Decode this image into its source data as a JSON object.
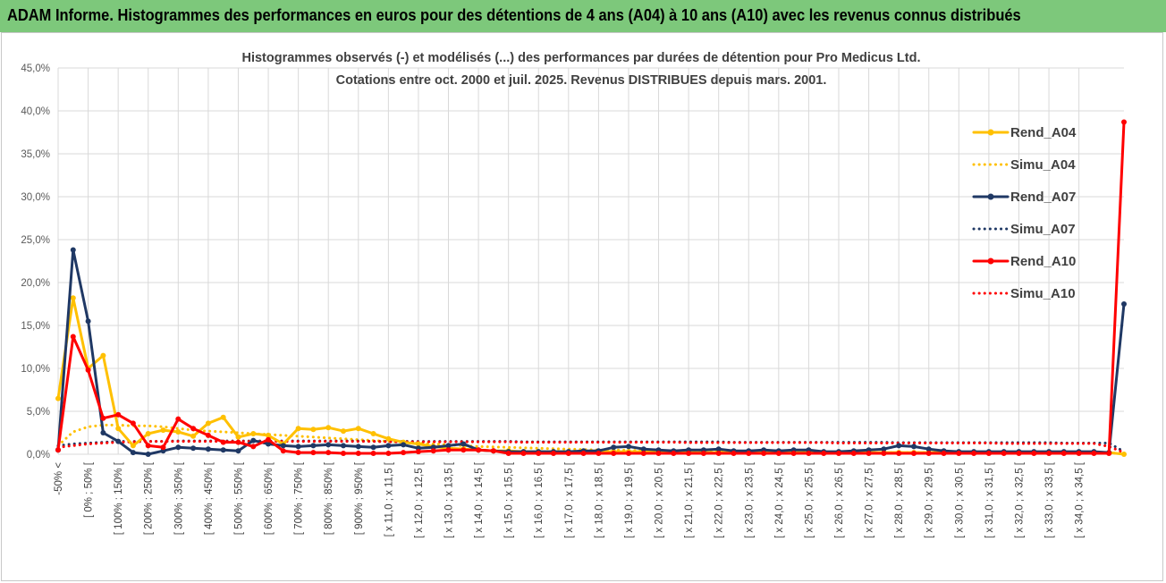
{
  "banner": {
    "title": "ADAM Informe. Histogrammes des performances en euros pour des détentions de 4 ans (A04) à 10 ans (A10) avec les revenus connus distribués"
  },
  "colors": {
    "banner": "#7dc87b",
    "A04": "#ffc000",
    "A07": "#1f3864",
    "A10": "#ff0000",
    "grid": "#d9d9d9"
  },
  "chart_data": {
    "type": "line",
    "title": "Histogrammes observés (-) et modélisés (...) des performances par durées de détention pour Pro Medicus Ltd.",
    "subtitle": "Cotations entre oct. 2000 et juil. 2025. Revenus DISTRIBUES depuis mars. 2001.",
    "ylim": [
      0,
      45
    ],
    "ytick_labels": [
      "0,0%",
      "5,0%",
      "10,0%",
      "15,0%",
      "20,0%",
      "25,0%",
      "30,0%",
      "35,0%",
      "40,0%",
      "45,0%"
    ],
    "grid": true,
    "legend_position": "right",
    "category_count": 72,
    "xtick_labels": [
      {
        "i": 0,
        "label": "-50% <"
      },
      {
        "i": 2,
        "label": "[ 0% ; 50% ["
      },
      {
        "i": 4,
        "label": "[ 100% ; 150% ["
      },
      {
        "i": 6,
        "label": "[ 200% ; 250% ["
      },
      {
        "i": 8,
        "label": "[ 300% ; 350% ["
      },
      {
        "i": 10,
        "label": "[ 400% ; 450% ["
      },
      {
        "i": 12,
        "label": "[ 500% ; 550% ["
      },
      {
        "i": 14,
        "label": "[ 600% ; 650% ["
      },
      {
        "i": 16,
        "label": "[ 700% ; 750% ["
      },
      {
        "i": 18,
        "label": "[ 800% ; 850% ["
      },
      {
        "i": 20,
        "label": "[ 900% ; 950% ["
      },
      {
        "i": 22,
        "label": "[ x 11,0 ; x 11,5 ["
      },
      {
        "i": 24,
        "label": "[ x 12,0 ; x 12,5 ["
      },
      {
        "i": 26,
        "label": "[ x 13,0 ; x 13,5 ["
      },
      {
        "i": 28,
        "label": "[ x 14,0 ; x 14,5 ["
      },
      {
        "i": 30,
        "label": "[ x 15,0 ; x 15,5 ["
      },
      {
        "i": 32,
        "label": "[ x 16,0 ; x 16,5 ["
      },
      {
        "i": 34,
        "label": "[ x 17,0 ; x 17,5 ["
      },
      {
        "i": 36,
        "label": "[ x 18,0 ; x 18,5 ["
      },
      {
        "i": 38,
        "label": "[ x 19,0 ; x 19,5 ["
      },
      {
        "i": 40,
        "label": "[ x 20,0 ; x 20,5 ["
      },
      {
        "i": 42,
        "label": "[ x 21,0 ; x 21,5 ["
      },
      {
        "i": 44,
        "label": "[ x 22,0 ; x 22,5 ["
      },
      {
        "i": 46,
        "label": "[ x 23,0 ; x 23,5 ["
      },
      {
        "i": 48,
        "label": "[ x 24,0 ; x 24,5 ["
      },
      {
        "i": 50,
        "label": "[ x 25,0 ; x 25,5 ["
      },
      {
        "i": 52,
        "label": "[ x 26,0 ; x 26,5 ["
      },
      {
        "i": 54,
        "label": "[ x 27,0 ; x 27,5 ["
      },
      {
        "i": 56,
        "label": "[ x 28,0 ; x 28,5 ["
      },
      {
        "i": 58,
        "label": "[ x 29,0 ; x 29,5 ["
      },
      {
        "i": 60,
        "label": "[ x 30,0 ; x 30,5 ["
      },
      {
        "i": 62,
        "label": "[ x 31,0 ; x 31,5 ["
      },
      {
        "i": 64,
        "label": "[ x 32,0 ; x 32,5 ["
      },
      {
        "i": 66,
        "label": "[ x 33,0 ; x 33,5 ["
      },
      {
        "i": 68,
        "label": "[ x 34,0 ; x 34,5 ["
      }
    ],
    "series": [
      {
        "name": "Rend_A04",
        "style": "solid",
        "color": "#ffc000",
        "values": [
          6.5,
          18.2,
          10.0,
          11.5,
          3.0,
          1.0,
          2.4,
          2.8,
          2.6,
          2.1,
          3.6,
          4.3,
          2.0,
          2.4,
          2.2,
          1.2,
          3.0,
          2.9,
          3.1,
          2.7,
          3.0,
          2.4,
          1.8,
          1.4,
          1.2,
          0.9,
          0.7,
          0.6,
          0.5,
          0.4,
          0.4,
          0.3,
          0.3,
          0.3,
          0.3,
          0.3,
          0.3,
          0.3,
          0.3,
          0.3,
          0.3,
          0.2,
          0.2,
          0.2,
          0.2,
          0.2,
          0.2,
          0.2,
          0.2,
          0.2,
          0.2,
          0.2,
          0.2,
          0.2,
          0.2,
          0.2,
          0.2,
          0.2,
          0.2,
          0.2,
          0.2,
          0.2,
          0.2,
          0.2,
          0.2,
          0.2,
          0.2,
          0.2,
          0.2,
          0.2,
          0.2,
          0.0
        ]
      },
      {
        "name": "Simu_A04",
        "style": "dotted",
        "color": "#ffc000",
        "values": [
          1.0,
          2.6,
          3.2,
          3.4,
          3.4,
          3.3,
          3.3,
          3.2,
          3.0,
          2.8,
          2.7,
          2.6,
          2.5,
          2.4,
          2.3,
          2.2,
          2.1,
          2.0,
          1.9,
          1.8,
          1.7,
          1.6,
          1.5,
          1.4,
          1.3,
          1.2,
          1.1,
          1.0,
          0.9,
          0.85,
          0.8,
          0.75,
          0.7,
          0.65,
          0.6,
          0.55,
          0.5,
          0.5,
          0.45,
          0.45,
          0.4,
          0.4,
          0.35,
          0.35,
          0.3,
          0.3,
          0.3,
          0.3,
          0.25,
          0.25,
          0.25,
          0.25,
          0.2,
          0.2,
          0.2,
          0.2,
          0.2,
          0.2,
          0.2,
          0.2,
          0.15,
          0.15,
          0.15,
          0.15,
          0.15,
          0.15,
          0.15,
          0.15,
          0.15,
          0.15,
          0.15,
          0.1
        ]
      },
      {
        "name": "Rend_A07",
        "style": "solid",
        "color": "#1f3864",
        "values": [
          0.5,
          23.8,
          15.5,
          2.5,
          1.5,
          0.2,
          0.0,
          0.4,
          0.8,
          0.7,
          0.6,
          0.5,
          0.4,
          1.6,
          1.2,
          1.0,
          0.9,
          1.0,
          1.1,
          1.0,
          0.9,
          0.8,
          1.0,
          1.1,
          0.7,
          0.8,
          1.0,
          1.2,
          0.5,
          0.4,
          0.3,
          0.3,
          0.3,
          0.3,
          0.3,
          0.4,
          0.4,
          0.8,
          0.9,
          0.6,
          0.5,
          0.4,
          0.5,
          0.5,
          0.6,
          0.4,
          0.4,
          0.5,
          0.4,
          0.5,
          0.5,
          0.3,
          0.3,
          0.4,
          0.5,
          0.6,
          1.0,
          0.9,
          0.6,
          0.4,
          0.3,
          0.3,
          0.3,
          0.3,
          0.3,
          0.3,
          0.3,
          0.3,
          0.3,
          0.3,
          0.2,
          17.5
        ]
      },
      {
        "name": "Simu_A07",
        "style": "dotted",
        "color": "#1f3864",
        "values": [
          1.0,
          1.2,
          1.3,
          1.4,
          1.5,
          1.5,
          1.5,
          1.5,
          1.55,
          1.55,
          1.55,
          1.55,
          1.55,
          1.55,
          1.55,
          1.55,
          1.55,
          1.55,
          1.55,
          1.55,
          1.55,
          1.5,
          1.5,
          1.5,
          1.5,
          1.5,
          1.5,
          1.5,
          1.5,
          1.5,
          1.5,
          1.45,
          1.45,
          1.45,
          1.45,
          1.45,
          1.45,
          1.45,
          1.45,
          1.45,
          1.45,
          1.45,
          1.45,
          1.45,
          1.45,
          1.4,
          1.4,
          1.4,
          1.4,
          1.4,
          1.4,
          1.4,
          1.4,
          1.4,
          1.4,
          1.4,
          1.35,
          1.35,
          1.35,
          1.35,
          1.35,
          1.35,
          1.35,
          1.35,
          1.35,
          1.35,
          1.35,
          1.3,
          1.3,
          1.3,
          1.3,
          0.3
        ]
      },
      {
        "name": "Rend_A10",
        "style": "solid",
        "color": "#ff0000",
        "values": [
          0.5,
          13.7,
          9.8,
          4.2,
          4.6,
          3.6,
          1.0,
          0.8,
          4.1,
          3.0,
          2.2,
          1.4,
          1.4,
          0.9,
          1.7,
          0.4,
          0.2,
          0.2,
          0.2,
          0.1,
          0.1,
          0.1,
          0.1,
          0.2,
          0.3,
          0.4,
          0.5,
          0.5,
          0.5,
          0.4,
          0.1,
          0.1,
          0.1,
          0.1,
          0.1,
          0.1,
          0.1,
          0.1,
          0.1,
          0.1,
          0.1,
          0.1,
          0.1,
          0.1,
          0.1,
          0.1,
          0.1,
          0.1,
          0.1,
          0.1,
          0.1,
          0.1,
          0.1,
          0.1,
          0.1,
          0.1,
          0.1,
          0.1,
          0.1,
          0.1,
          0.1,
          0.1,
          0.1,
          0.1,
          0.1,
          0.1,
          0.1,
          0.1,
          0.1,
          0.1,
          0.1,
          38.7
        ]
      },
      {
        "name": "Simu_A10",
        "style": "dotted",
        "color": "#ff0000",
        "values": [
          0.8,
          1.0,
          1.2,
          1.3,
          1.4,
          1.45,
          1.5,
          1.5,
          1.5,
          1.5,
          1.5,
          1.5,
          1.5,
          1.5,
          1.5,
          1.5,
          1.5,
          1.5,
          1.5,
          1.5,
          1.5,
          1.5,
          1.45,
          1.45,
          1.45,
          1.45,
          1.45,
          1.45,
          1.45,
          1.45,
          1.45,
          1.4,
          1.4,
          1.4,
          1.4,
          1.4,
          1.4,
          1.4,
          1.4,
          1.4,
          1.4,
          1.4,
          1.35,
          1.35,
          1.35,
          1.35,
          1.35,
          1.35,
          1.35,
          1.35,
          1.35,
          1.35,
          1.3,
          1.3,
          1.3,
          1.3,
          1.3,
          1.3,
          1.3,
          1.3,
          1.3,
          1.3,
          1.3,
          1.25,
          1.25,
          1.25,
          1.25,
          1.25,
          1.25,
          1.25,
          0.9,
          0.2
        ]
      }
    ]
  }
}
